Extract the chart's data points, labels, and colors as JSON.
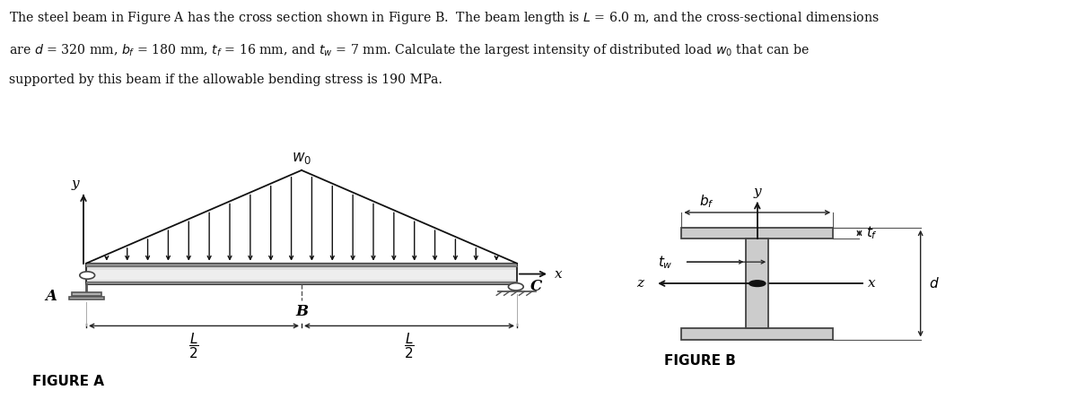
{
  "bg_color": "#ffffff",
  "beam_color": "#e0e0e0",
  "beam_edge_color": "#333333",
  "beam_stripe_color": "#f0f0f0",
  "arrow_color": "#111111",
  "ibeam_color": "#cccccc",
  "ibeam_edge": "#444444",
  "support_color": "#b0b0b0",
  "dim_color": "#222222",
  "fig_a_label": "FIGURE A",
  "fig_b_label": "FIGURE B",
  "text_line1": "The steel beam in Figure A has the cross section shown in Figure B.  The beam length is $L$ = 6.0 m, and the cross-sectional dimensions",
  "text_line2": "are $d$ = 320 mm, $b_f$ = 180 mm, $t_f$ = 16 mm, and $t_w$ = 7 mm. Calculate the largest intensity of distributed load $w_0$ that can be",
  "text_line3": "supported by this beam if the allowable bending stress is 190 MPa."
}
